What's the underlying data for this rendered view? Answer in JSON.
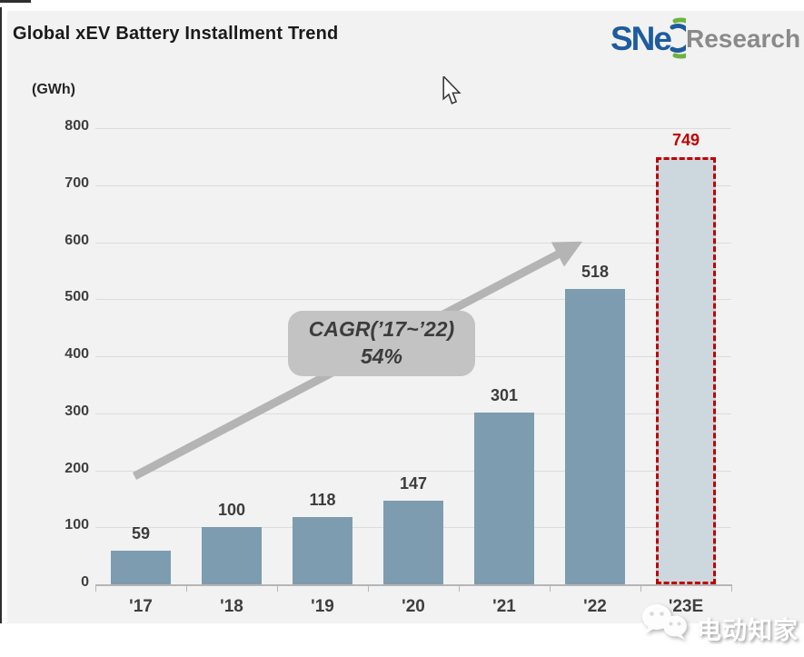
{
  "header": {
    "title": "Global xEV Battery Installment Trend",
    "logo": {
      "wordmark": "SNe",
      "suffix": "Research"
    }
  },
  "chart_data": {
    "type": "bar",
    "title": "Global xEV Battery Installment Trend",
    "unit_label": "(GWh)",
    "categories": [
      "'17",
      "'18",
      "'19",
      "'20",
      "'21",
      "'22",
      "'23E"
    ],
    "values": [
      59,
      100,
      118,
      147,
      301,
      518,
      749
    ],
    "forecast_index": 6,
    "ylim": [
      0,
      800
    ],
    "ytick_step": 100,
    "xlabel": "",
    "ylabel": "",
    "grid": "horizontal",
    "legend": "none",
    "annotation": {
      "line1": "CAGR(’17~’22)",
      "line2": "54%"
    },
    "colors": {
      "bar": "#7d9cb0",
      "forecast_fill": "#ccd8de",
      "forecast_border": "#c00000",
      "value_label": "#3c3c3c",
      "forecast_value_label": "#c00000",
      "arrow": "#b4b4b4",
      "annotation_bg": "#c3c3c3",
      "gridline": "#dcdcdc",
      "logo_blue": "#1e5c9e",
      "logo_green": "#6db33f",
      "logo_gray": "#8a8a8a"
    }
  },
  "watermark": {
    "text": "电动知家"
  }
}
